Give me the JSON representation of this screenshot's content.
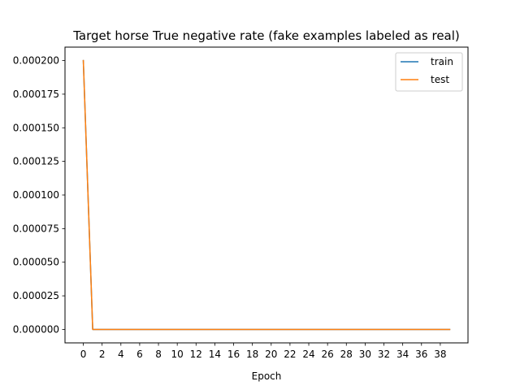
{
  "chart_data": {
    "type": "line",
    "title": "Target horse True negative rate (fake examples labeled as real)",
    "xlabel": "Epoch",
    "ylabel": "",
    "xlim": [
      -1.95,
      40.95
    ],
    "ylim": [
      -1e-05,
      0.00021
    ],
    "x_ticks": [
      0,
      2,
      4,
      6,
      8,
      10,
      12,
      14,
      16,
      18,
      20,
      22,
      24,
      26,
      28,
      30,
      32,
      34,
      36,
      38
    ],
    "y_ticks": [
      0,
      2.5e-05,
      5e-05,
      7.5e-05,
      0.0001,
      0.000125,
      0.00015,
      0.000175,
      0.0002
    ],
    "y_tick_labels": [
      "0.000000",
      "0.000025",
      "0.000050",
      "0.000075",
      "0.000100",
      "0.000125",
      "0.000150",
      "0.000175",
      "0.000200"
    ],
    "grid": false,
    "legend_position": "upper-right",
    "series": [
      {
        "name": "train",
        "color": "#1f77b4",
        "x": [
          0,
          1,
          2,
          3,
          4,
          5,
          6,
          7,
          8,
          9,
          10,
          11,
          12,
          13,
          14,
          15,
          16,
          17,
          18,
          19,
          20,
          21,
          22,
          23,
          24,
          25,
          26,
          27,
          28,
          29,
          30,
          31,
          32,
          33,
          34,
          35,
          36,
          37,
          38,
          39
        ],
        "values": [
          0.0002,
          0,
          0,
          0,
          0,
          0,
          0,
          0,
          0,
          0,
          0,
          0,
          0,
          0,
          0,
          0,
          0,
          0,
          0,
          0,
          0,
          0,
          0,
          0,
          0,
          0,
          0,
          0,
          0,
          0,
          0,
          0,
          0,
          0,
          0,
          0,
          0,
          0,
          0,
          0
        ]
      },
      {
        "name": "test",
        "color": "#ff7f0e",
        "x": [
          0,
          1,
          2,
          3,
          4,
          5,
          6,
          7,
          8,
          9,
          10,
          11,
          12,
          13,
          14,
          15,
          16,
          17,
          18,
          19,
          20,
          21,
          22,
          23,
          24,
          25,
          26,
          27,
          28,
          29,
          30,
          31,
          32,
          33,
          34,
          35,
          36,
          37,
          38,
          39
        ],
        "values": [
          0.0002,
          0,
          0,
          0,
          0,
          0,
          0,
          0,
          0,
          0,
          0,
          0,
          0,
          0,
          0,
          0,
          0,
          0,
          0,
          0,
          0,
          0,
          0,
          0,
          0,
          0,
          0,
          0,
          0,
          0,
          0,
          0,
          0,
          0,
          0,
          0,
          0,
          0,
          0,
          0
        ]
      }
    ]
  }
}
